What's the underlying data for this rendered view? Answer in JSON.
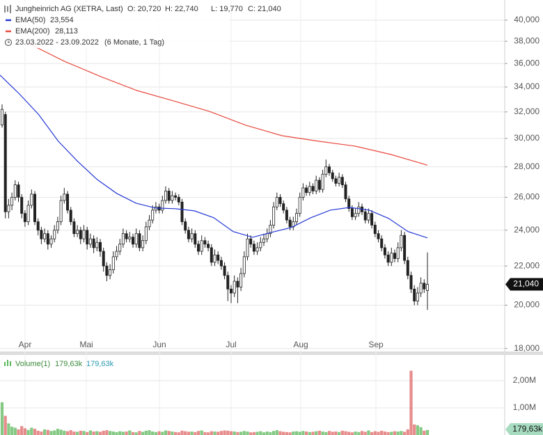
{
  "chart_data": [
    {
      "type": "candlestick",
      "title": "Jungheinrich AG (XETRA, Last)",
      "ohlc_labels": [
        "O: 20,720",
        "H: 22,740",
        "L: 19,770",
        "C: 21,040"
      ],
      "range": "23.03.2022 - 23.09.2022",
      "period": "(6 Monate, 1 Tag)",
      "last_label": "21,040",
      "x_labels": [
        "Apr",
        "Mai",
        "Jun",
        "Jul",
        "Aug",
        "Sep"
      ],
      "log_scale": true,
      "grid": true,
      "up_color": "#ffffff",
      "down_color": "#222222",
      "ylim": [
        17870,
        42010
      ],
      "yticks": [
        {
          "value": 18000,
          "label": "18,000"
        },
        {
          "value": 20000,
          "label": "20,000"
        },
        {
          "value": 22000,
          "label": "22,000"
        },
        {
          "value": 24000,
          "label": "24,000"
        },
        {
          "value": 26000,
          "label": "26,000"
        },
        {
          "value": 28000,
          "label": "28,000"
        },
        {
          "value": 30000,
          "label": "30,000"
        },
        {
          "value": 32000,
          "label": "32,000"
        },
        {
          "value": 34000,
          "label": "34,000"
        },
        {
          "value": 36000,
          "label": "36,000"
        },
        {
          "value": 38000,
          "label": "38,000"
        },
        {
          "value": 40000,
          "label": "40,000"
        }
      ],
      "open": [
        31000,
        31800,
        25100,
        25500,
        26000,
        26800,
        26000,
        25000,
        24500,
        25500,
        26200,
        24500,
        24000,
        23500,
        23800,
        23200,
        23500,
        24000,
        24500,
        25800,
        26200,
        25200,
        24500,
        23800,
        24000,
        23500,
        24000,
        23200,
        23500,
        23000,
        23300,
        22800,
        22000,
        21500,
        21800,
        22500,
        22800,
        23200,
        23800,
        23500,
        23600,
        23200,
        23800,
        23000,
        23400,
        24200,
        24600,
        25200,
        25400,
        25200,
        25800,
        26400,
        25800,
        26100,
        26000,
        25700,
        24500,
        24000,
        23500,
        23800,
        23200,
        22800,
        23400,
        23200,
        23000,
        22200,
        22600,
        22300,
        22000,
        21500,
        20800,
        20600,
        21200,
        20900,
        21600,
        22500,
        23500,
        23200,
        22800,
        23000,
        23300,
        23500,
        23800,
        24300,
        25400,
        26000,
        25600,
        25200,
        24600,
        24200,
        24500,
        25000,
        26000,
        26600,
        26300,
        26700,
        26400,
        27100,
        26500,
        27500,
        28000,
        27600,
        27200,
        26900,
        27300,
        26800,
        25900,
        25300,
        24800,
        25000,
        25400,
        25100,
        24600,
        25000,
        24300,
        23800,
        23500,
        23000,
        22600,
        22200,
        22700,
        22400,
        23000,
        23700,
        22300,
        21500,
        20800,
        20200,
        20600,
        21100,
        20720
      ],
      "high": [
        32600,
        32000,
        25900,
        26300,
        27100,
        27000,
        26200,
        25200,
        25800,
        26500,
        26400,
        24700,
        24200,
        24100,
        24000,
        23700,
        24300,
        24800,
        26100,
        26600,
        26400,
        25400,
        24700,
        24300,
        24200,
        24300,
        24200,
        23800,
        23700,
        23600,
        23500,
        23000,
        22200,
        22100,
        22800,
        23100,
        23500,
        24100,
        24000,
        23900,
        23800,
        24100,
        24000,
        23700,
        24500,
        24900,
        25500,
        25700,
        25600,
        26100,
        26700,
        26600,
        26400,
        26300,
        26200,
        25900,
        24700,
        24200,
        24100,
        24000,
        23400,
        23700,
        23600,
        23400,
        23200,
        22900,
        22800,
        22500,
        22200,
        21700,
        21000,
        21500,
        21400,
        21900,
        22800,
        23800,
        23700,
        23400,
        23300,
        23600,
        23800,
        24100,
        24600,
        25700,
        26300,
        26200,
        25800,
        25400,
        24800,
        24800,
        25300,
        26300,
        26900,
        26800,
        27000,
        26900,
        27400,
        27300,
        27800,
        28500,
        28200,
        27800,
        27400,
        27600,
        27500,
        27000,
        26100,
        25500,
        25300,
        25700,
        25600,
        25300,
        25300,
        25200,
        24500,
        24000,
        23700,
        23200,
        22800,
        23000,
        22900,
        23300,
        24000,
        23900,
        22500,
        21700,
        21000,
        20900,
        21400,
        21300,
        22740
      ],
      "low": [
        30800,
        24700,
        24700,
        25200,
        25800,
        25700,
        24700,
        24200,
        24300,
        25300,
        24300,
        23700,
        23200,
        23300,
        22900,
        23000,
        23300,
        23800,
        24300,
        25600,
        25000,
        24300,
        23600,
        23600,
        23200,
        23300,
        22900,
        23000,
        22700,
        22800,
        22500,
        21700,
        21200,
        21300,
        21600,
        22300,
        22600,
        23000,
        23300,
        23300,
        23000,
        23000,
        22800,
        22800,
        23200,
        24000,
        24400,
        25000,
        25000,
        25000,
        25600,
        25600,
        25600,
        25800,
        25500,
        24300,
        23800,
        23300,
        23300,
        23000,
        22600,
        22600,
        23000,
        22800,
        22000,
        22000,
        22100,
        21800,
        21300,
        20200,
        20100,
        20400,
        20100,
        20700,
        21400,
        22300,
        23000,
        22600,
        22600,
        22800,
        23100,
        23300,
        23600,
        24100,
        25200,
        25400,
        25000,
        24400,
        24000,
        24000,
        24300,
        24800,
        25800,
        26100,
        26100,
        26200,
        26200,
        26300,
        26300,
        27300,
        27400,
        27000,
        26700,
        26700,
        26600,
        25700,
        25100,
        24600,
        24600,
        24800,
        24900,
        24400,
        24400,
        24100,
        23600,
        23300,
        22800,
        22400,
        22000,
        22000,
        22200,
        22200,
        22800,
        22100,
        21300,
        20600,
        20000,
        20000,
        20400,
        20600,
        19770
      ],
      "close": [
        32200,
        25100,
        25500,
        26000,
        26800,
        26000,
        25000,
        24500,
        25500,
        26200,
        24500,
        24000,
        23500,
        23800,
        23200,
        23500,
        24000,
        24500,
        25800,
        26200,
        25200,
        24500,
        23800,
        24000,
        23500,
        24000,
        23200,
        23500,
        23000,
        23300,
        22800,
        22000,
        21500,
        21800,
        22500,
        22800,
        23200,
        23800,
        23500,
        23600,
        23200,
        23800,
        23000,
        23400,
        24200,
        24600,
        25200,
        25400,
        25200,
        25800,
        26400,
        25800,
        26100,
        26000,
        25700,
        24500,
        24000,
        23500,
        23800,
        23200,
        22800,
        23400,
        23200,
        23000,
        22200,
        22600,
        22300,
        22000,
        21500,
        20800,
        20600,
        21200,
        20900,
        21600,
        22500,
        23500,
        23200,
        22800,
        23000,
        23300,
        23500,
        23800,
        24300,
        25400,
        26000,
        25600,
        25200,
        24600,
        24200,
        24500,
        25000,
        26000,
        26600,
        26300,
        26700,
        26400,
        27100,
        26500,
        27500,
        28000,
        27600,
        27200,
        26900,
        27300,
        26800,
        25900,
        25300,
        24800,
        25000,
        25400,
        25100,
        24600,
        25000,
        24300,
        23800,
        23500,
        23000,
        22600,
        22200,
        22700,
        22400,
        23000,
        23700,
        22300,
        21500,
        20800,
        20200,
        20600,
        21100,
        20800,
        21040
      ],
      "series": [
        {
          "name": "EMA(50)",
          "color": "#2437d6",
          "value_label": "23,554",
          "values": [
            35000,
            33430,
            31780,
            29800,
            28370,
            27150,
            26250,
            25630,
            25330,
            25290,
            25160,
            24740,
            23920,
            23590,
            23880,
            24160,
            24740,
            25200,
            25370,
            25200,
            24700,
            23920,
            23554
          ]
        },
        {
          "name": "EMA(200)",
          "color": "#e8483e",
          "value_label": "28,113",
          "values": [
            37830,
            36200,
            34880,
            33710,
            32880,
            32040,
            30980,
            30200,
            29800,
            29450,
            28850,
            28113
          ]
        }
      ]
    },
    {
      "type": "bar",
      "title": "Volume(1)",
      "legend_values": [
        "179,63k",
        "179,63k"
      ],
      "last_label": "179,63k",
      "up_color": "#5cb85c",
      "down_color": "#e06666",
      "ylim": [
        0,
        2950000
      ],
      "yticks": [
        {
          "value": 1000000,
          "label": "1,00M"
        },
        {
          "value": 2000000,
          "label": "2,00M"
        }
      ],
      "values": [
        1200000,
        700000,
        420000,
        300000,
        260000,
        200000,
        320000,
        240000,
        180000,
        260000,
        220000,
        150000,
        120000,
        200000,
        180000,
        140000,
        160000,
        220000,
        190000,
        150000,
        130000,
        170000,
        120000,
        110000,
        150000,
        140000,
        100000,
        160000,
        120000,
        130000,
        110000,
        150000,
        170000,
        140000,
        120000,
        100000,
        130000,
        110000,
        120000,
        160000,
        100000,
        90000,
        140000,
        110000,
        150000,
        170000,
        120000,
        100000,
        130000,
        110000,
        160000,
        140000,
        120000,
        100000,
        90000,
        150000,
        130000,
        110000,
        120000,
        100000,
        140000,
        160000,
        100000,
        90000,
        130000,
        120000,
        110000,
        140000,
        160000,
        150000,
        130000,
        120000,
        100000,
        110000,
        140000,
        120000,
        90000,
        100000,
        110000,
        130000,
        90000,
        120000,
        100000,
        140000,
        170000,
        130000,
        110000,
        100000,
        90000,
        120000,
        130000,
        110000,
        140000,
        120000,
        100000,
        110000,
        130000,
        150000,
        120000,
        100000,
        140000,
        110000,
        120000,
        100000,
        150000,
        130000,
        110000,
        90000,
        120000,
        100000,
        140000,
        110000,
        160000,
        100000,
        130000,
        110000,
        150000,
        120000,
        100000,
        110000,
        130000,
        120000,
        140000,
        110000,
        200000,
        2360000,
        380000,
        350000,
        280000,
        150000,
        179630
      ]
    }
  ]
}
